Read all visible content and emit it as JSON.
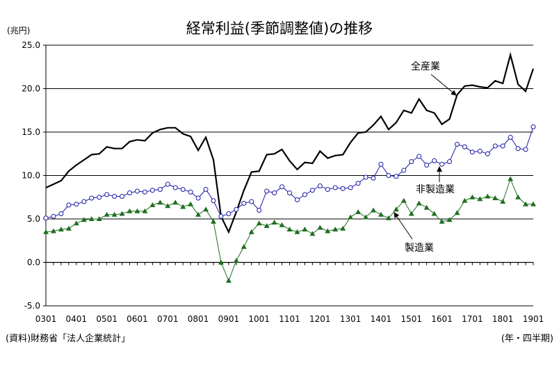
{
  "chart_data": {
    "type": "line",
    "title": "経常利益(季節調整値)の推移",
    "unit_label": "(兆円)",
    "x_period_label": "(年・四半期)",
    "source_note": "(資料)財務省「法人企業統計」",
    "ylim": [
      -5,
      25
    ],
    "y_ticks": [
      "-5.0",
      "0.0",
      "5.0",
      "10.0",
      "15.0",
      "20.0",
      "25.0"
    ],
    "y_tick_values": [
      -5,
      0,
      5,
      10,
      15,
      20,
      25
    ],
    "gridlines_at": [
      5,
      10,
      15,
      20,
      25
    ],
    "x_tick_labels": [
      "0301",
      "0401",
      "0501",
      "0601",
      "0701",
      "0801",
      "0901",
      "1001",
      "1101",
      "1201",
      "1301",
      "1401",
      "1501",
      "1601",
      "1701",
      "1801",
      "1901"
    ],
    "x": [
      "0301",
      "0302",
      "0303",
      "0304",
      "0401",
      "0402",
      "0403",
      "0404",
      "0501",
      "0502",
      "0503",
      "0504",
      "0601",
      "0602",
      "0603",
      "0604",
      "0701",
      "0702",
      "0703",
      "0704",
      "0801",
      "0802",
      "0803",
      "0804",
      "0901",
      "0902",
      "0903",
      "0904",
      "1001",
      "1002",
      "1003",
      "1004",
      "1101",
      "1102",
      "1103",
      "1104",
      "1201",
      "1202",
      "1203",
      "1204",
      "1301",
      "1302",
      "1303",
      "1304",
      "1401",
      "1402",
      "1403",
      "1404",
      "1501",
      "1502",
      "1503",
      "1504",
      "1601",
      "1602",
      "1603",
      "1604",
      "1701",
      "1702",
      "1703",
      "1704",
      "1801",
      "1802",
      "1803",
      "1804",
      "1901"
    ],
    "series": [
      {
        "name": "全産業",
        "color": "#000000",
        "marker": "none",
        "values": [
          8.6,
          9.0,
          9.4,
          10.5,
          11.2,
          11.8,
          12.4,
          12.5,
          13.3,
          13.1,
          13.1,
          13.9,
          14.1,
          14.0,
          14.9,
          15.3,
          15.5,
          15.5,
          14.8,
          14.5,
          12.9,
          14.4,
          11.8,
          5.3,
          3.5,
          5.8,
          8.3,
          10.4,
          10.5,
          12.4,
          12.5,
          13.0,
          11.7,
          10.7,
          11.5,
          11.4,
          12.8,
          12.0,
          12.3,
          12.4,
          13.8,
          14.9,
          15.0,
          15.8,
          16.8,
          15.3,
          16.1,
          17.5,
          17.2,
          18.8,
          17.5,
          17.2,
          15.9,
          16.5,
          19.3,
          20.3,
          20.4,
          20.2,
          20.1,
          20.9,
          20.6,
          23.9,
          20.5,
          19.7,
          22.3
        ]
      },
      {
        "name": "非製造業",
        "color": "#1a1aa6",
        "marker": "circle-open",
        "values": [
          5.1,
          5.3,
          5.6,
          6.6,
          6.7,
          7.0,
          7.4,
          7.5,
          7.8,
          7.6,
          7.6,
          8.0,
          8.2,
          8.1,
          8.3,
          8.4,
          9.0,
          8.6,
          8.4,
          8.1,
          7.4,
          8.4,
          7.1,
          5.3,
          5.6,
          6.1,
          6.8,
          7.0,
          6.0,
          8.2,
          8.0,
          8.7,
          8.0,
          7.2,
          7.8,
          8.3,
          8.8,
          8.4,
          8.6,
          8.5,
          8.6,
          9.1,
          9.8,
          9.7,
          11.3,
          10.0,
          9.9,
          10.6,
          11.6,
          12.2,
          11.2,
          11.7,
          11.3,
          11.6,
          13.6,
          13.3,
          12.7,
          12.8,
          12.5,
          13.4,
          13.4,
          14.4,
          13.1,
          13.0,
          15.6
        ]
      },
      {
        "name": "製造業",
        "color": "#1f6e1f",
        "marker": "triangle-filled",
        "values": [
          3.5,
          3.6,
          3.8,
          3.9,
          4.5,
          4.9,
          5.0,
          5.0,
          5.5,
          5.5,
          5.6,
          5.9,
          5.9,
          5.9,
          6.6,
          6.9,
          6.5,
          6.9,
          6.4,
          6.7,
          5.5,
          6.1,
          4.7,
          0.0,
          -2.1,
          0.2,
          1.8,
          3.5,
          4.5,
          4.2,
          4.6,
          4.3,
          3.8,
          3.5,
          3.8,
          3.3,
          4.0,
          3.6,
          3.8,
          3.9,
          5.2,
          5.8,
          5.2,
          6.0,
          5.5,
          5.1,
          6.1,
          7.1,
          5.6,
          6.8,
          6.3,
          5.6,
          4.7,
          4.9,
          5.7,
          7.1,
          7.5,
          7.3,
          7.6,
          7.4,
          7.0,
          9.6,
          7.5,
          6.7,
          6.7
        ]
      }
    ],
    "annotations": [
      {
        "text": "全産業",
        "points_to_series": "全産業"
      },
      {
        "text": "非製造業",
        "points_to_series": "非製造業"
      },
      {
        "text": "製造業",
        "points_to_series": "製造業"
      }
    ],
    "grid": true,
    "legend": "none (direct labels with arrows)"
  }
}
